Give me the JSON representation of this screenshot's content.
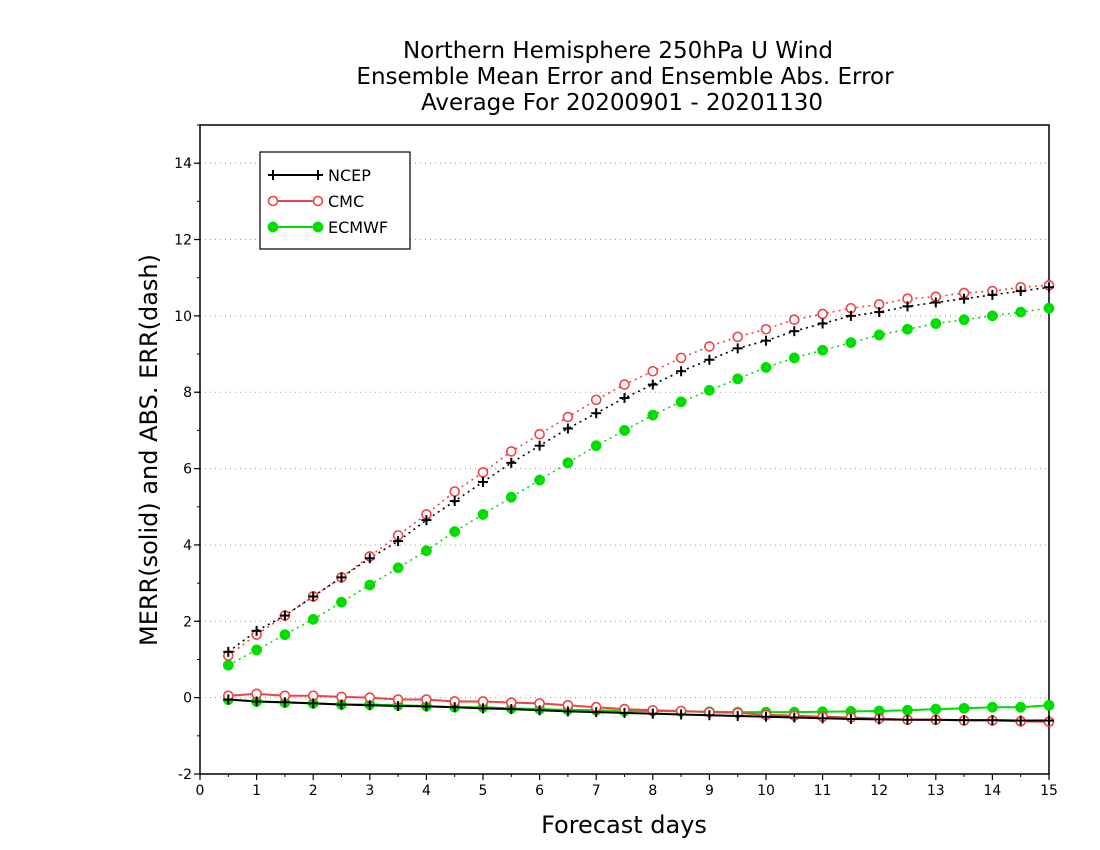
{
  "chart_data": {
    "type": "line",
    "title_lines": [
      "Northern Hemisphere 250hPa U Wind",
      "Ensemble Mean Error and Ensemble Abs. Error",
      "Average For 20200901 - 20201130"
    ],
    "xlabel": "Forecast days",
    "ylabel": "MERR(solid) and ABS. ERR(dash)",
    "xlim": [
      0,
      15
    ],
    "ylim": [
      -2,
      15
    ],
    "x_ticks": [
      "0",
      "1",
      "2",
      "3",
      "4",
      "5",
      "6",
      "7",
      "8",
      "9",
      "10",
      "11",
      "12",
      "13",
      "14",
      "15"
    ],
    "y_ticks": [
      "-2",
      "0",
      "2",
      "4",
      "6",
      "8",
      "10",
      "12",
      "14"
    ],
    "grid": "horizontal dotted",
    "legend_position": "top-left",
    "x": [
      0.5,
      1,
      1.5,
      2,
      2.5,
      3,
      3.5,
      4,
      4.5,
      5,
      5.5,
      6,
      6.5,
      7,
      7.5,
      8,
      8.5,
      9,
      9.5,
      10,
      10.5,
      11,
      11.5,
      12,
      12.5,
      13,
      13.5,
      14,
      14.5,
      15
    ],
    "series": [
      {
        "name": "NCEP",
        "color": "#000000",
        "marker": "plus",
        "abs_err": [
          1.2,
          1.75,
          2.15,
          2.65,
          3.15,
          3.65,
          4.1,
          4.65,
          5.15,
          5.65,
          6.15,
          6.6,
          7.05,
          7.45,
          7.85,
          8.2,
          8.55,
          8.85,
          9.15,
          9.35,
          9.6,
          9.8,
          10.0,
          10.1,
          10.25,
          10.35,
          10.45,
          10.55,
          10.65,
          10.75
        ],
        "mean_err": [
          -0.05,
          -0.1,
          -0.12,
          -0.15,
          -0.18,
          -0.2,
          -0.22,
          -0.23,
          -0.25,
          -0.28,
          -0.3,
          -0.33,
          -0.36,
          -0.38,
          -0.4,
          -0.42,
          -0.44,
          -0.46,
          -0.48,
          -0.5,
          -0.52,
          -0.54,
          -0.56,
          -0.57,
          -0.58,
          -0.58,
          -0.59,
          -0.59,
          -0.6,
          -0.6
        ]
      },
      {
        "name": "CMC",
        "color": "#ee4444",
        "marker": "open-circle",
        "abs_err": [
          1.1,
          1.65,
          2.15,
          2.65,
          3.15,
          3.7,
          4.25,
          4.8,
          5.4,
          5.9,
          6.45,
          6.9,
          7.35,
          7.8,
          8.2,
          8.55,
          8.9,
          9.2,
          9.45,
          9.65,
          9.9,
          10.05,
          10.2,
          10.3,
          10.45,
          10.5,
          10.6,
          10.65,
          10.75,
          10.8
        ],
        "mean_err": [
          0.05,
          0.1,
          0.05,
          0.05,
          0.02,
          0.0,
          -0.05,
          -0.05,
          -0.1,
          -0.1,
          -0.13,
          -0.15,
          -0.2,
          -0.25,
          -0.3,
          -0.33,
          -0.35,
          -0.38,
          -0.4,
          -0.45,
          -0.47,
          -0.5,
          -0.52,
          -0.55,
          -0.58,
          -0.58,
          -0.6,
          -0.6,
          -0.62,
          -0.63
        ]
      },
      {
        "name": "ECMWF",
        "color": "#00dd00",
        "marker": "filled-circle",
        "abs_err": [
          0.85,
          1.25,
          1.65,
          2.05,
          2.5,
          2.95,
          3.4,
          3.85,
          4.35,
          4.8,
          5.25,
          5.7,
          6.15,
          6.6,
          7.0,
          7.4,
          7.75,
          8.05,
          8.35,
          8.65,
          8.9,
          9.1,
          9.3,
          9.5,
          9.65,
          9.8,
          9.9,
          10.0,
          10.1,
          10.2
        ],
        "mean_err": [
          -0.05,
          -0.1,
          -0.13,
          -0.15,
          -0.18,
          -0.18,
          -0.2,
          -0.22,
          -0.25,
          -0.25,
          -0.28,
          -0.3,
          -0.32,
          -0.33,
          -0.35,
          -0.35,
          -0.36,
          -0.37,
          -0.38,
          -0.38,
          -0.38,
          -0.37,
          -0.36,
          -0.35,
          -0.33,
          -0.3,
          -0.28,
          -0.25,
          -0.25,
          -0.2
        ]
      }
    ]
  }
}
